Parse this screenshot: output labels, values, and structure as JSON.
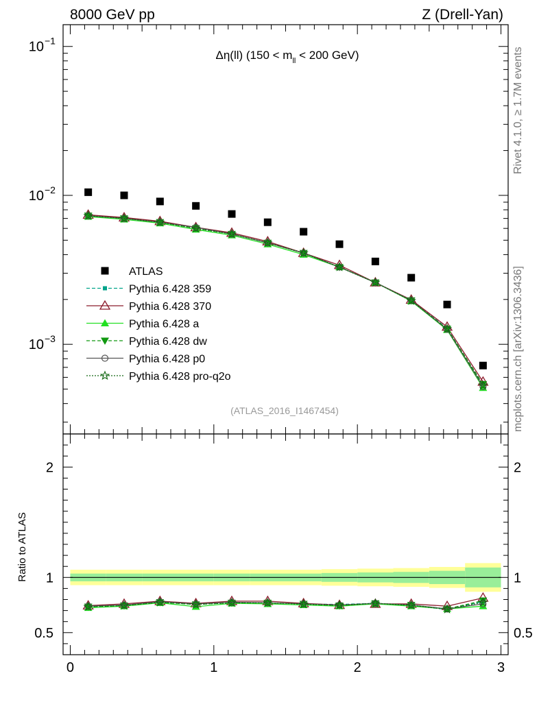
{
  "header": {
    "left": "8000 GeV pp",
    "right": "Z (Drell-Yan)"
  },
  "side": {
    "rivet": "Rivet 4.1.0, ≥ 1.7M events",
    "mcplots": "mcplots.cern.ch [arXiv:1306.3436]"
  },
  "chart_data": {
    "type": "scatter",
    "title": {
      "prefix": "Δη(ll) (150 < m",
      "sub": "ll",
      "suffix": " < 200 GeV)"
    },
    "analysis_id": "(ATLAS_2016_I1467454)",
    "x": [
      0.125,
      0.375,
      0.625,
      0.875,
      1.125,
      1.375,
      1.625,
      1.875,
      2.125,
      2.375,
      2.625,
      2.875
    ],
    "x_bin_edges": [
      0,
      0.25,
      0.5,
      0.75,
      1.0,
      1.25,
      1.5,
      1.75,
      2.0,
      2.25,
      2.5,
      2.75,
      3.0
    ],
    "main": {
      "yscale": "log",
      "ylim": [
        0.00025,
        0.14
      ],
      "y_ticks": [
        {
          "value": 0.1,
          "base": "10",
          "exp": "−1"
        },
        {
          "value": 0.01,
          "base": "10",
          "exp": "−2"
        },
        {
          "value": 0.001,
          "base": "10",
          "exp": "−3"
        }
      ]
    },
    "data": {
      "name": "ATLAS",
      "values": [
        0.0105,
        0.01,
        0.0091,
        0.0085,
        0.0075,
        0.0066,
        0.0057,
        0.0047,
        0.0036,
        0.0028,
        0.00185,
        0.00072
      ]
    },
    "series": [
      {
        "name": "Pythia 6.428 359",
        "color": "#00a38a",
        "dash": "5,3",
        "marker": "square-small",
        "values": [
          0.0073,
          0.007,
          0.0066,
          0.0061,
          0.0055,
          0.0048,
          0.0041,
          0.0033,
          0.0026,
          0.00197,
          0.00128,
          0.00053
        ]
      },
      {
        "name": "Pythia 6.428 370",
        "color": "#8b1a2b",
        "dash": "",
        "marker": "triangle-open",
        "values": [
          0.0074,
          0.0071,
          0.0067,
          0.0061,
          0.0056,
          0.0049,
          0.0041,
          0.0034,
          0.0026,
          0.00199,
          0.00131,
          0.00056
        ]
      },
      {
        "name": "Pythia 6.428 a",
        "color": "#22e022",
        "dash": "",
        "marker": "triangle-filled",
        "values": [
          0.0072,
          0.0069,
          0.0065,
          0.0059,
          0.0054,
          0.0047,
          0.004,
          0.0033,
          0.0026,
          0.00195,
          0.00125,
          0.00051
        ]
      },
      {
        "name": "Pythia 6.428 dw",
        "color": "#119911",
        "dash": "5,3",
        "marker": "triangle-down-filled",
        "values": [
          0.0073,
          0.007,
          0.0066,
          0.006,
          0.0055,
          0.0048,
          0.0041,
          0.0033,
          0.0026,
          0.00197,
          0.00127,
          0.00054
        ]
      },
      {
        "name": "Pythia 6.428 p0",
        "color": "#555555",
        "dash": "",
        "marker": "circle-open",
        "values": [
          0.0073,
          0.007,
          0.0066,
          0.0061,
          0.0055,
          0.0048,
          0.0041,
          0.0033,
          0.0026,
          0.00197,
          0.00126,
          0.00052
        ]
      },
      {
        "name": "Pythia 6.428 pro-q2o",
        "color": "#116611",
        "dash": "2,2",
        "marker": "star-open",
        "values": [
          0.0073,
          0.007,
          0.0066,
          0.006,
          0.0055,
          0.0048,
          0.0041,
          0.0033,
          0.0026,
          0.00196,
          0.00127,
          0.00053
        ]
      }
    ],
    "ratio": {
      "ylabel": "Ratio to ATLAS",
      "ylim": [
        0.3,
        2.3
      ],
      "y_ticks": [
        {
          "value": 0.5,
          "label": "0.5"
        },
        {
          "value": 1,
          "label": "1"
        },
        {
          "value": 2,
          "label": "2"
        }
      ],
      "band_stat": [
        0.035,
        0.035,
        0.035,
        0.035,
        0.035,
        0.035,
        0.035,
        0.04,
        0.045,
        0.05,
        0.06,
        0.09
      ],
      "band_total": [
        0.07,
        0.07,
        0.07,
        0.07,
        0.07,
        0.07,
        0.07,
        0.075,
        0.08,
        0.085,
        0.095,
        0.13
      ],
      "series_values": {
        "Pythia 6.428 359": [
          0.735,
          0.745,
          0.775,
          0.755,
          0.77,
          0.77,
          0.76,
          0.755,
          0.765,
          0.745,
          0.71,
          0.78
        ],
        "Pythia 6.428 370": [
          0.745,
          0.76,
          0.785,
          0.765,
          0.785,
          0.785,
          0.765,
          0.75,
          0.76,
          0.76,
          0.74,
          0.815
        ],
        "Pythia 6.428 a": [
          0.725,
          0.74,
          0.77,
          0.735,
          0.765,
          0.76,
          0.75,
          0.74,
          0.76,
          0.74,
          0.715,
          0.74
        ],
        "Pythia 6.428 dw": [
          0.735,
          0.745,
          0.775,
          0.755,
          0.77,
          0.77,
          0.76,
          0.745,
          0.765,
          0.75,
          0.715,
          0.79
        ],
        "Pythia 6.428 p0": [
          0.74,
          0.75,
          0.78,
          0.76,
          0.775,
          0.77,
          0.76,
          0.75,
          0.765,
          0.75,
          0.715,
          0.76
        ],
        "Pythia 6.428 pro-q2o": [
          0.735,
          0.745,
          0.775,
          0.755,
          0.77,
          0.77,
          0.758,
          0.748,
          0.765,
          0.748,
          0.712,
          0.775
        ]
      }
    },
    "xaxis": {
      "xlim": [
        -0.05,
        3.05
      ],
      "ticks": [
        {
          "value": 0,
          "label": "0"
        },
        {
          "value": 1,
          "label": "1"
        },
        {
          "value": 2,
          "label": "2"
        },
        {
          "value": 3,
          "label": "3"
        }
      ]
    },
    "colors": {
      "band_total": "#ffff99",
      "band_stat": "#99ee99",
      "data_marker": "#000000"
    }
  }
}
